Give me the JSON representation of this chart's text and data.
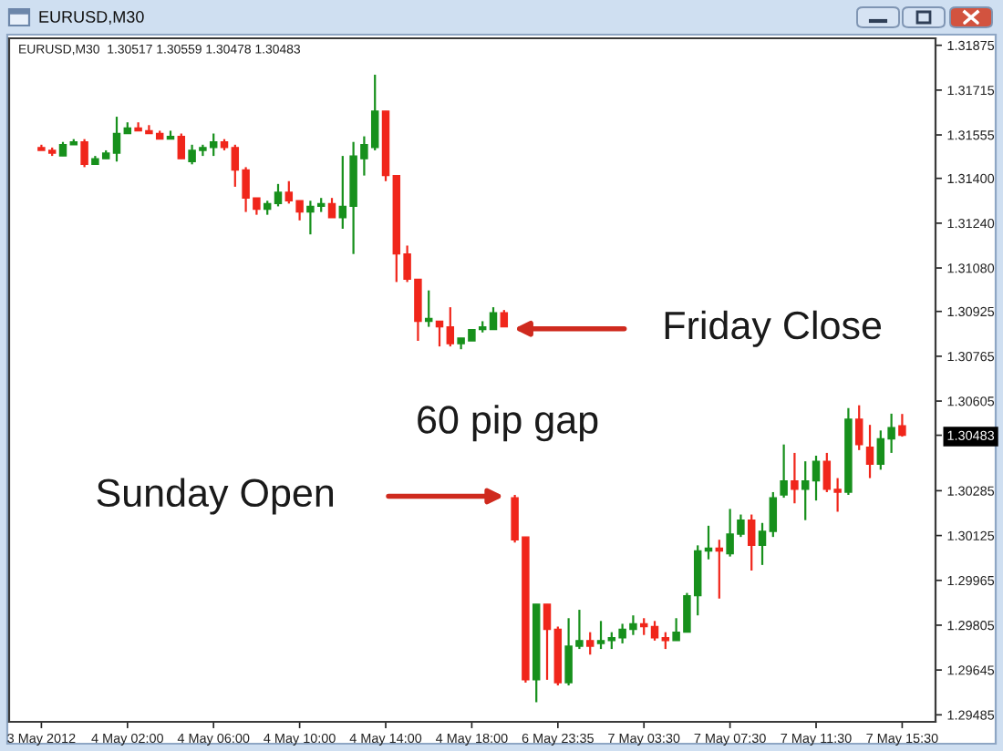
{
  "chart_data": {
    "type": "candlestick",
    "title": "EURUSD,M30",
    "subtitle": "EURUSD,M30  1.30517 1.30559 1.30478 1.30483",
    "categories": [
      "3 May 2012",
      null,
      null,
      null,
      null,
      null,
      null,
      null,
      "4 May 02:00",
      null,
      null,
      null,
      null,
      null,
      null,
      null,
      "4 May 06:00",
      null,
      null,
      null,
      null,
      null,
      null,
      null,
      "4 May 10:00",
      null,
      null,
      null,
      null,
      null,
      null,
      null,
      "4 May 14:00",
      null,
      null,
      null,
      null,
      null,
      null,
      null,
      "4 May 18:00",
      null,
      null,
      null,
      null,
      null,
      null,
      null,
      "6 May 23:35",
      null,
      null,
      null,
      null,
      null,
      null,
      null,
      "7 May 03:30",
      null,
      null,
      null,
      null,
      null,
      null,
      null,
      "7 May 07:30",
      null,
      null,
      null,
      null,
      null,
      null,
      null,
      "7 May 11:30",
      null,
      null,
      null,
      null,
      null,
      null,
      null,
      "7 May 15:30"
    ],
    "ohlc": [
      [
        1.3151,
        1.3152,
        1.315,
        1.315
      ],
      [
        1.315,
        1.3151,
        1.3148,
        1.3149
      ],
      [
        1.3148,
        1.3153,
        1.3148,
        1.3152
      ],
      [
        1.3152,
        1.3154,
        1.3152,
        1.3153
      ],
      [
        1.3153,
        1.3154,
        1.3144,
        1.3145
      ],
      [
        1.3145,
        1.3148,
        1.3145,
        1.3147
      ],
      [
        1.3147,
        1.315,
        1.3147,
        1.3149
      ],
      [
        1.3149,
        1.3162,
        1.3146,
        1.3156
      ],
      [
        1.3156,
        1.316,
        1.3156,
        1.3158
      ],
      [
        1.3158,
        1.316,
        1.3157,
        1.3157
      ],
      [
        1.3157,
        1.3159,
        1.3156,
        1.3156
      ],
      [
        1.3156,
        1.3157,
        1.3154,
        1.3154
      ],
      [
        1.3154,
        1.3157,
        1.3154,
        1.3155
      ],
      [
        1.3155,
        1.3156,
        1.3147,
        1.3147
      ],
      [
        1.3146,
        1.3152,
        1.3145,
        1.315
      ],
      [
        1.315,
        1.3152,
        1.3148,
        1.3151
      ],
      [
        1.3151,
        1.3156,
        1.3148,
        1.3153
      ],
      [
        1.3153,
        1.3154,
        1.315,
        1.3151
      ],
      [
        1.3151,
        1.3152,
        1.3137,
        1.3143
      ],
      [
        1.3143,
        1.3144,
        1.3128,
        1.3133
      ],
      [
        1.3133,
        1.3133,
        1.3127,
        1.3129
      ],
      [
        1.3129,
        1.3132,
        1.3127,
        1.3131
      ],
      [
        1.3131,
        1.3138,
        1.313,
        1.3135
      ],
      [
        1.3135,
        1.3139,
        1.3131,
        1.3132
      ],
      [
        1.3132,
        1.3132,
        1.3125,
        1.3128
      ],
      [
        1.3128,
        1.3132,
        1.312,
        1.313
      ],
      [
        1.313,
        1.3133,
        1.3128,
        1.3131
      ],
      [
        1.3131,
        1.3133,
        1.3126,
        1.3126
      ],
      [
        1.3126,
        1.3148,
        1.3122,
        1.313
      ],
      [
        1.313,
        1.3153,
        1.3113,
        1.3148
      ],
      [
        1.3147,
        1.3155,
        1.3141,
        1.3152
      ],
      [
        1.3151,
        1.3177,
        1.315,
        1.3164
      ],
      [
        1.3164,
        1.3164,
        1.3139,
        1.3141
      ],
      [
        1.3141,
        1.3141,
        1.3103,
        1.3113
      ],
      [
        1.3113,
        1.3116,
        1.3103,
        1.3104
      ],
      [
        1.3104,
        1.3104,
        1.3082,
        1.3089
      ],
      [
        1.3089,
        1.31,
        1.3087,
        1.309
      ],
      [
        1.3089,
        1.3089,
        1.308,
        1.3087
      ],
      [
        1.3087,
        1.3094,
        1.308,
        1.3081
      ],
      [
        1.3081,
        1.3083,
        1.3079,
        1.3083
      ],
      [
        1.3082,
        1.3086,
        1.3082,
        1.3086
      ],
      [
        1.3086,
        1.3089,
        1.3085,
        1.3087
      ],
      [
        1.3086,
        1.3094,
        1.3086,
        1.3092
      ],
      [
        1.3092,
        1.3093,
        1.3087,
        1.3087
      ],
      [
        1.3026,
        1.3027,
        1.301,
        1.3011
      ],
      [
        1.3012,
        1.3012,
        1.296,
        1.2961
      ],
      [
        1.2961,
        1.2988,
        1.2953,
        1.2988
      ],
      [
        1.2988,
        1.2988,
        1.2961,
        1.2979
      ],
      [
        1.2979,
        1.298,
        1.2959,
        1.296
      ],
      [
        1.296,
        1.2983,
        1.2959,
        1.2973
      ],
      [
        1.2973,
        1.2986,
        1.2972,
        1.2975
      ],
      [
        1.2975,
        1.2978,
        1.297,
        1.2973
      ],
      [
        1.2974,
        1.2982,
        1.2972,
        1.2975
      ],
      [
        1.2975,
        1.2978,
        1.2972,
        1.2976
      ],
      [
        1.2976,
        1.2981,
        1.2974,
        1.2979
      ],
      [
        1.2979,
        1.2984,
        1.2977,
        1.2981
      ],
      [
        1.2981,
        1.2983,
        1.2977,
        1.298
      ],
      [
        1.298,
        1.2982,
        1.2975,
        1.2976
      ],
      [
        1.2976,
        1.2978,
        1.2972,
        1.2975
      ],
      [
        1.2975,
        1.2983,
        1.2975,
        1.2978
      ],
      [
        1.2978,
        1.2992,
        1.2978,
        1.2991
      ],
      [
        1.2991,
        1.3009,
        1.2984,
        1.3007
      ],
      [
        1.3007,
        1.3016,
        1.3004,
        1.3008
      ],
      [
        1.3008,
        1.3011,
        1.299,
        1.3007
      ],
      [
        1.3006,
        1.3022,
        1.3005,
        1.3013
      ],
      [
        1.3013,
        1.302,
        1.3012,
        1.3018
      ],
      [
        1.3018,
        1.302,
        1.3,
        1.3009
      ],
      [
        1.3009,
        1.3017,
        1.3002,
        1.3014
      ],
      [
        1.3014,
        1.3028,
        1.3012,
        1.3026
      ],
      [
        1.3027,
        1.3045,
        1.3026,
        1.3032
      ],
      [
        1.3032,
        1.3042,
        1.3024,
        1.3029
      ],
      [
        1.3029,
        1.3039,
        1.3018,
        1.3032
      ],
      [
        1.3032,
        1.3041,
        1.3025,
        1.3039
      ],
      [
        1.3039,
        1.3042,
        1.3028,
        1.3029
      ],
      [
        1.3029,
        1.3033,
        1.3021,
        1.3028
      ],
      [
        1.3028,
        1.3058,
        1.3027,
        1.3054
      ],
      [
        1.3054,
        1.3059,
        1.3043,
        1.3045
      ],
      [
        1.3044,
        1.3052,
        1.3033,
        1.3038
      ],
      [
        1.3038,
        1.305,
        1.3036,
        1.3047
      ],
      [
        1.3047,
        1.3056,
        1.3042,
        1.3051
      ],
      [
        1.30517,
        1.30559,
        1.30478,
        1.30483
      ]
    ],
    "colors": [
      "#f0261b",
      "#f0261b",
      "#17901c",
      "#17901c",
      "#f0261b",
      "#17901c",
      "#17901c",
      "#17901c",
      "#17901c",
      "#f0261b",
      "#f0261b",
      "#f0261b",
      "#17901c",
      "#f0261b",
      "#17901c",
      "#17901c",
      "#17901c",
      "#f0261b",
      "#f0261b",
      "#f0261b",
      "#f0261b",
      "#17901c",
      "#17901c",
      "#f0261b",
      "#f0261b",
      "#17901c",
      "#17901c",
      "#f0261b",
      "#17901c",
      "#17901c",
      "#17901c",
      "#17901c",
      "#f0261b",
      "#f0261b",
      "#f0261b",
      "#f0261b",
      "#17901c",
      "#f0261b",
      "#f0261b",
      "#17901c",
      "#17901c",
      "#17901c",
      "#17901c",
      "#f0261b",
      "#f0261b",
      "#f0261b",
      "#17901c",
      "#f0261b",
      "#f0261b",
      "#17901c",
      "#17901c",
      "#f0261b",
      "#17901c",
      "#17901c",
      "#17901c",
      "#17901c",
      "#f0261b",
      "#f0261b",
      "#f0261b",
      "#17901c",
      "#17901c",
      "#17901c",
      "#17901c",
      "#f0261b",
      "#17901c",
      "#17901c",
      "#f0261b",
      "#17901c",
      "#17901c",
      "#17901c",
      "#f0261b",
      "#17901c",
      "#17901c",
      "#f0261b",
      "#f0261b",
      "#17901c",
      "#f0261b",
      "#f0261b",
      "#17901c",
      "#17901c",
      "#f0261b"
    ],
    "ylim": [
      1.2946,
      1.319
    ],
    "yticks": [
      1.31875,
      1.31715,
      1.31555,
      {
        "value": 1.314,
        "label": "1.31400"
      },
      {
        "value": 1.3124,
        "label": "1.31240"
      },
      {
        "value": 1.3108,
        "label": "1.31080"
      },
      1.30925,
      1.30765,
      1.30605,
      1.30483,
      1.30285,
      1.30125,
      1.29965,
      1.29805,
      1.29645,
      1.29485
    ],
    "annotations": [
      "Friday Close",
      "60 pip gap",
      "Sunday Open"
    ]
  }
}
